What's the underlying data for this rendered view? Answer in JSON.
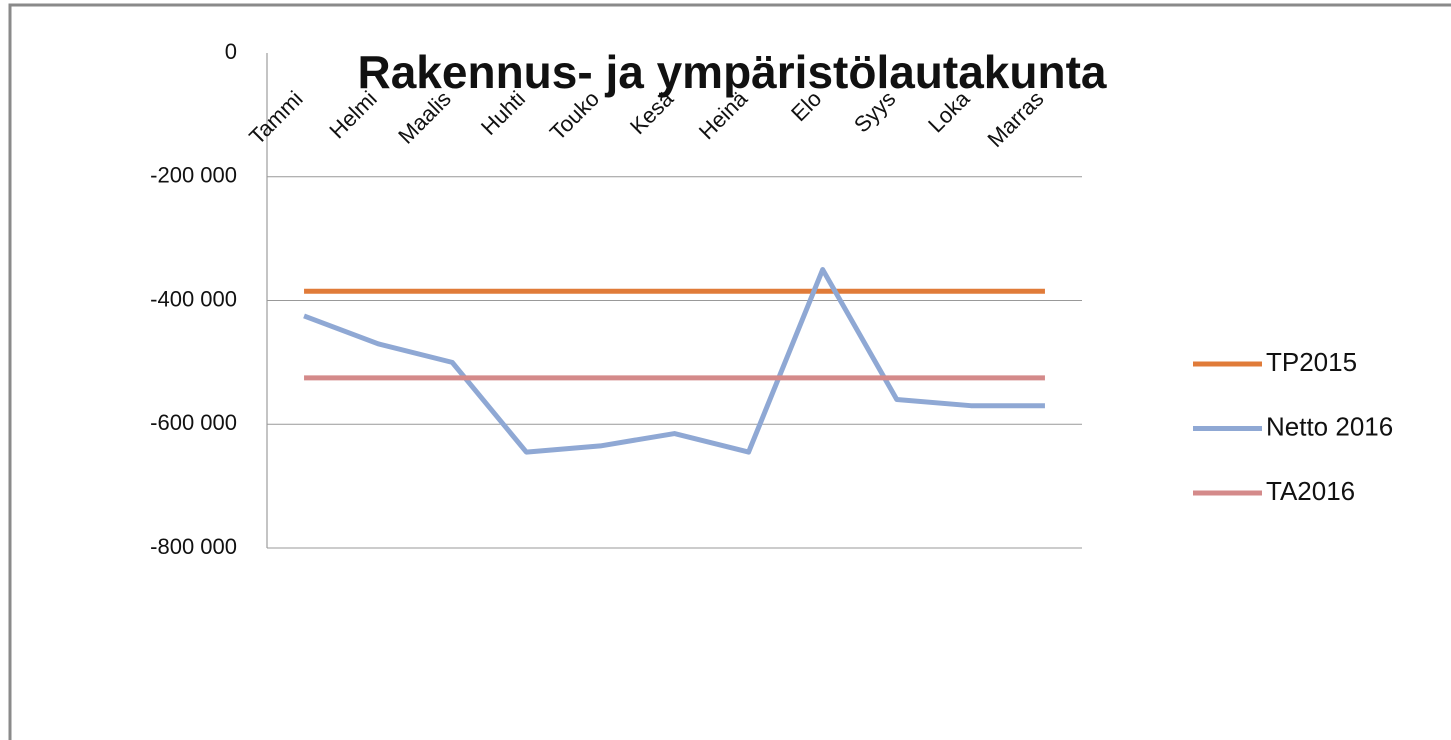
{
  "chart_data": {
    "type": "line",
    "title": "Rakennus- ja ympäristölautakunta",
    "categories": [
      "Tammi",
      "Helmi",
      "Maalis",
      "Huhti",
      "Touko",
      "Kesä",
      "Heinä",
      "Elo",
      "Syys",
      "Loka",
      "Marras"
    ],
    "series": [
      {
        "name": "TP2015",
        "color": "#e07b39",
        "values": [
          -385000,
          -385000,
          -385000,
          -385000,
          -385000,
          -385000,
          -385000,
          -385000,
          -385000,
          -385000,
          -385000
        ]
      },
      {
        "name": "Netto 2016",
        "color": "#8fa8d4",
        "values": [
          -425000,
          -470000,
          -500000,
          -645000,
          -635000,
          -615000,
          -645000,
          -350000,
          -560000,
          -570000,
          -570000
        ]
      },
      {
        "name": "TA2016",
        "color": "#d48a8a",
        "values": [
          -525000,
          -525000,
          -525000,
          -525000,
          -525000,
          -525000,
          -525000,
          -525000,
          -525000,
          -525000,
          -525000
        ]
      }
    ],
    "ylim": [
      -800000,
      0
    ],
    "yticks": [
      0,
      {
        "value": -200000,
        "label": "-200 000"
      },
      {
        "value": -400000,
        "label": "-400 000"
      },
      {
        "value": -600000,
        "label": "-600 000"
      },
      {
        "value": -800000,
        "label": "-800 000"
      }
    ],
    "grid": true,
    "legend": "right"
  }
}
